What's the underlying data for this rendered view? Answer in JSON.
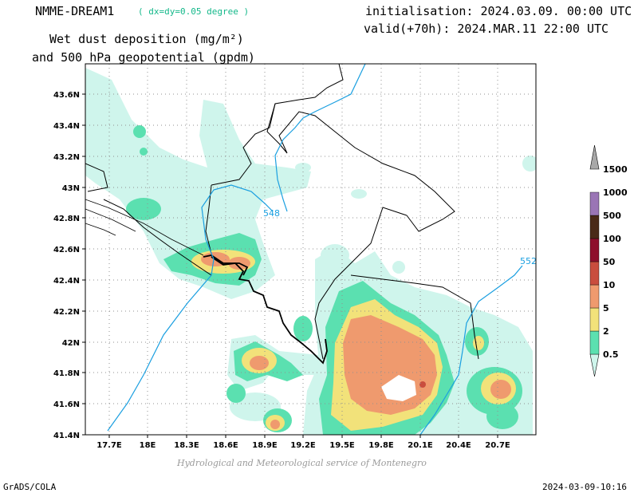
{
  "header": {
    "model": "NMME-DREAM1",
    "grid": "( dx=dy=0.05 degree )",
    "initialisation": "initialisation: 2024.03.09. 00:00 UTC",
    "valid": "valid(+70h): 2024.MAR.11 22:00 UTC",
    "title_line1": "Wet dust deposition (mg/m²)",
    "title_line2": "and 500 hPa geopotential (gpdm)"
  },
  "footer": {
    "credit": "Hydrological and Meteorological service of Montenegro",
    "software": "GrADS/COLA",
    "timestamp": "2024-03-09-10:16"
  },
  "axes": {
    "lat_labels": [
      "43.6N",
      "43.4N",
      "43.2N",
      "43N",
      "42.8N",
      "42.6N",
      "42.4N",
      "42.2N",
      "42N",
      "41.8N",
      "41.6N",
      "41.4N"
    ],
    "lon_labels": [
      "17.7E",
      "18E",
      "18.3E",
      "18.6E",
      "18.9E",
      "19.2E",
      "19.5E",
      "19.8E",
      "20.1E",
      "20.4E",
      "20.7E"
    ]
  },
  "contours": [
    {
      "label": "548",
      "color": "#1a9fe0"
    },
    {
      "label": "552",
      "color": "#1a9fe0"
    }
  ],
  "colorbar": [
    {
      "label": "0.5",
      "color": "#cff5ec"
    },
    {
      "label": "2",
      "color": "#5be0b0"
    },
    {
      "label": "5",
      "color": "#f2e27a"
    },
    {
      "label": "10",
      "color": "#ef9a6e"
    },
    {
      "label": "50",
      "color": "#c94d3e"
    },
    {
      "label": "100",
      "color": "#8e0f2c"
    },
    {
      "label": "500",
      "color": "#4a2a18"
    },
    {
      "label": "1000",
      "color": "#9a75b5"
    },
    {
      "label": "1500",
      "color": "#a8a8a8"
    }
  ]
}
